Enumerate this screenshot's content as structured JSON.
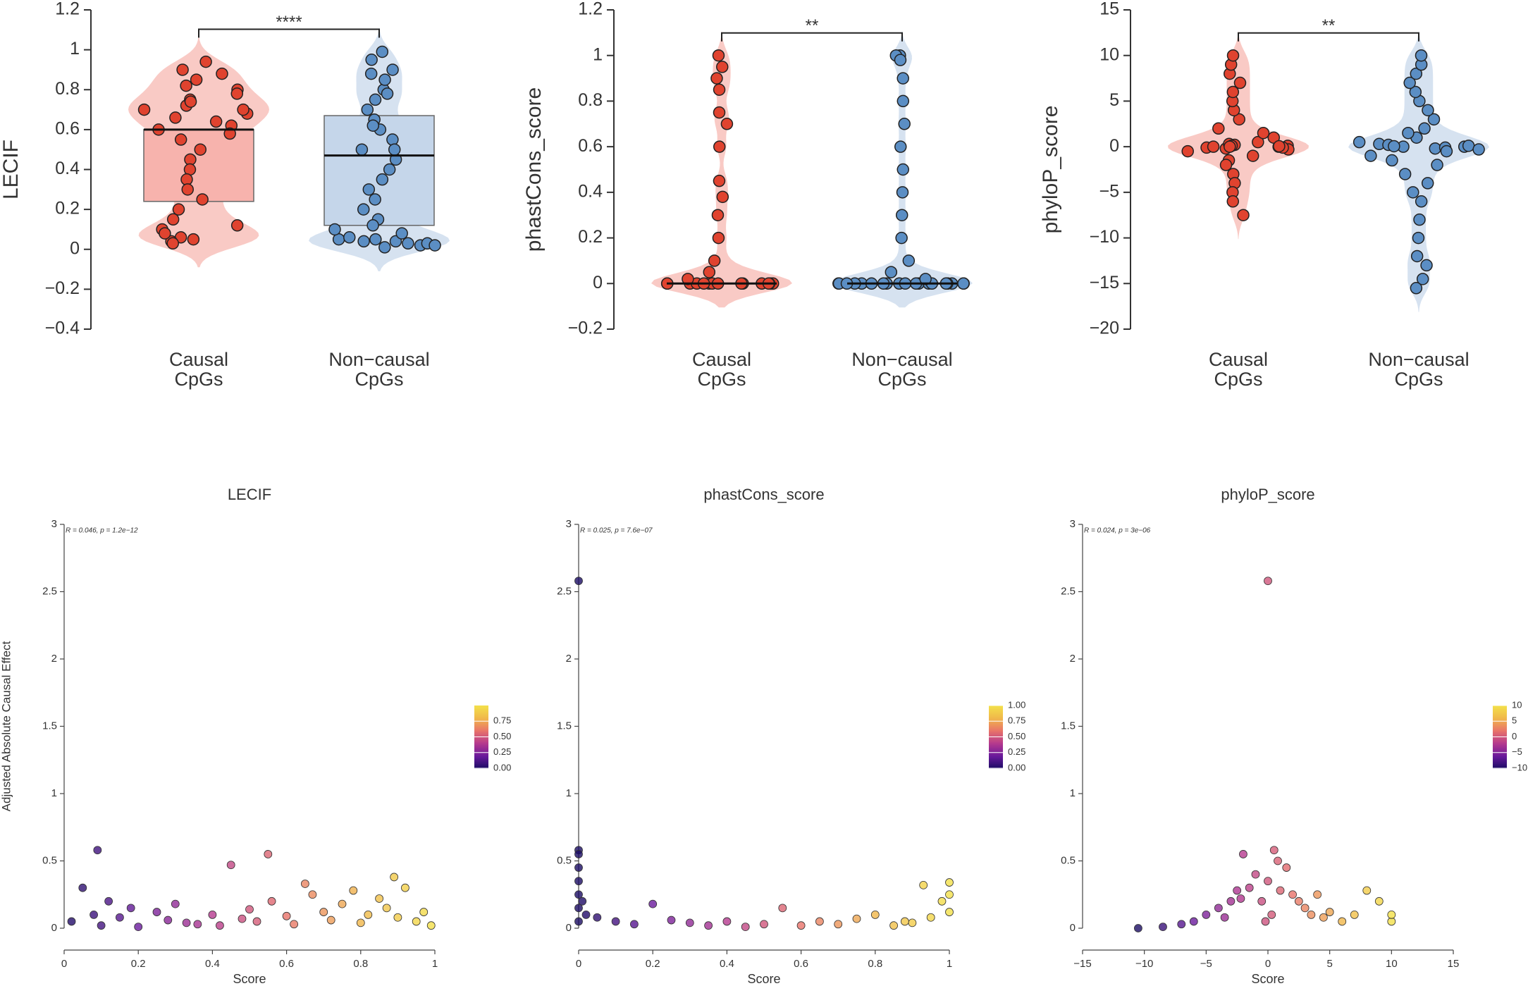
{
  "chart_data": [
    {
      "type": "violin",
      "ylabel": "LECIF",
      "categories": [
        "Causal CpGs",
        "Non−causal CpGs"
      ],
      "ylim": [
        -0.4,
        1.2
      ],
      "yticks": [
        {
          "value": -0.4,
          "label": "−0.4"
        },
        {
          "value": -0.2,
          "label": "−0.2"
        },
        0,
        0.2,
        0.4,
        0.6,
        0.8,
        1,
        1.2
      ],
      "significance": {
        "label": "****"
      },
      "series": [
        {
          "name": "Causal CpGs",
          "color": "#e0432f",
          "box_color": "#f7b3ad",
          "box": {
            "q1": 0.24,
            "median": 0.6,
            "q3": 0.6
          },
          "values": [
            0.62,
            0.68,
            0.72,
            0.75,
            0.8,
            0.85,
            0.9,
            0.94,
            0.7,
            0.66,
            0.58,
            0.64,
            0.78,
            0.82,
            0.6,
            0.55,
            0.5,
            0.45,
            0.4,
            0.35,
            0.3,
            0.25,
            0.2,
            0.15,
            0.1,
            0.06,
            0.04,
            0.08,
            0.12,
            0.05,
            0.7,
            0.74,
            0.88,
            0.03
          ]
        },
        {
          "name": "Non−causal CpGs",
          "color": "#5b8ec4",
          "box_color": "#c5d6ea",
          "box": {
            "q1": 0.12,
            "median": 0.47,
            "q3": 0.67
          },
          "values": [
            0.02,
            0.03,
            0.04,
            0.05,
            0.02,
            0.06,
            0.08,
            0.1,
            0.03,
            0.04,
            0.15,
            0.2,
            0.25,
            0.3,
            0.35,
            0.4,
            0.45,
            0.5,
            0.55,
            0.6,
            0.65,
            0.7,
            0.75,
            0.8,
            0.85,
            0.9,
            0.95,
            0.99,
            0.01,
            0.05,
            0.12,
            0.5,
            0.62,
            0.78,
            0.88
          ]
        }
      ]
    },
    {
      "type": "violin",
      "ylabel": "phastCons_score",
      "categories": [
        "Causal CpGs",
        "Non−causal CpGs"
      ],
      "ylim": [
        -0.2,
        1.2
      ],
      "yticks": [
        {
          "value": -0.2,
          "label": "−0.2"
        },
        0,
        0.2,
        0.4,
        0.6,
        0.8,
        1,
        1.2
      ],
      "significance": {
        "label": "**"
      },
      "series": [
        {
          "name": "Causal CpGs",
          "color": "#e0432f",
          "box_color": "#f7b3ad",
          "box": {
            "q1": 0,
            "median": 0,
            "q3": 0
          },
          "values": [
            0,
            0,
            0,
            0,
            0,
            0,
            0,
            0,
            0,
            0,
            0,
            0,
            0,
            0,
            0,
            1,
            0.95,
            0.85,
            0.75,
            0.6,
            0.45,
            0.38,
            0.3,
            0.2,
            0.1,
            0.05,
            0.02,
            0.9,
            0.7
          ]
        },
        {
          "name": "Non−causal CpGs",
          "color": "#5b8ec4",
          "box_color": "#c5d6ea",
          "box": {
            "q1": 0,
            "median": 0,
            "q3": 0
          },
          "values": [
            0,
            0,
            0,
            0,
            0,
            0,
            0,
            0,
            0,
            0,
            0,
            0,
            0,
            0,
            0,
            0,
            0,
            0,
            0,
            0,
            1,
            1,
            0.98,
            0.9,
            0.8,
            0.7,
            0.6,
            0.5,
            0.4,
            0.3,
            0.2,
            0.1,
            0.05,
            0.02
          ]
        }
      ]
    },
    {
      "type": "violin",
      "ylabel": "phyloP_score",
      "categories": [
        "Causal CpGs",
        "Non−causal CpGs"
      ],
      "ylim": [
        -20,
        15
      ],
      "yticks": [
        {
          "value": -20,
          "label": "−20"
        },
        {
          "value": -15,
          "label": "−15"
        },
        {
          "value": -10,
          "label": "−10"
        },
        {
          "value": -5,
          "label": "−5"
        },
        0,
        5,
        10,
        15
      ],
      "significance": {
        "label": "**"
      },
      "series": [
        {
          "name": "Causal CpGs",
          "color": "#e0432f",
          "box_color": "#f7b3ad",
          "values": [
            0,
            0.1,
            -0.2,
            0.3,
            -0.3,
            0.2,
            -0.1,
            0.5,
            -0.5,
            0,
            1,
            -1,
            1.5,
            -1.5,
            2,
            -2,
            3,
            -3,
            4,
            5,
            6,
            7,
            8,
            9,
            10,
            -4,
            -5,
            -6,
            -7.5,
            0.1,
            -0.1,
            0,
            0.05
          ]
        },
        {
          "name": "Non−causal CpGs",
          "color": "#5b8ec4",
          "box_color": "#c5d6ea",
          "values": [
            0,
            0.1,
            -0.2,
            0.3,
            -0.3,
            0.2,
            -0.1,
            0.5,
            -0.5,
            0,
            1,
            -1,
            1.5,
            -1.5,
            2,
            -2,
            3,
            -3,
            4,
            5,
            6,
            7,
            8,
            9,
            10,
            -4,
            -5,
            -6,
            -8,
            -10,
            -12,
            -13,
            -15.5,
            -14.5,
            0.05
          ]
        }
      ]
    },
    {
      "type": "scatter",
      "title": "LECIF",
      "xlabel": "Score",
      "ylabel": "Adjusted Absolute Causal Effect",
      "annotation": "R = 0.046, p = 1.2e−12",
      "xlim": [
        0,
        1
      ],
      "xticks": [
        0,
        0.2,
        0.4,
        0.6,
        0.8,
        1
      ],
      "ylim": [
        0,
        3
      ],
      "yticks": [
        0,
        0.5,
        1,
        1.5,
        2,
        2.5,
        3
      ],
      "colormap": [
        "#1b0c64",
        "#6a1a9c",
        "#b5398e",
        "#e8736a",
        "#f0b74a",
        "#f3e04a"
      ],
      "colorbar": {
        "lim": [
          0,
          1
        ],
        "ticks": [
          {
            "value": 0,
            "label": "0.00"
          },
          0.25,
          {
            "value": 0.5,
            "label": "0.50"
          },
          0.75
        ]
      },
      "x": [
        0.02,
        0.05,
        0.08,
        0.1,
        0.12,
        0.15,
        0.18,
        0.2,
        0.25,
        0.28,
        0.3,
        0.33,
        0.36,
        0.4,
        0.42,
        0.45,
        0.48,
        0.5,
        0.52,
        0.55,
        0.56,
        0.6,
        0.62,
        0.65,
        0.67,
        0.7,
        0.72,
        0.75,
        0.78,
        0.8,
        0.82,
        0.85,
        0.87,
        0.89,
        0.9,
        0.92,
        0.95,
        0.97,
        0.99,
        0.09
      ],
      "y": [
        0.05,
        0.3,
        0.1,
        0.02,
        0.2,
        0.08,
        0.15,
        0.01,
        0.12,
        0.06,
        0.18,
        0.04,
        0.03,
        0.1,
        0.02,
        0.47,
        0.07,
        0.14,
        0.05,
        0.55,
        0.2,
        0.09,
        0.03,
        0.33,
        0.25,
        0.12,
        0.06,
        0.18,
        0.28,
        0.04,
        0.1,
        0.22,
        0.15,
        0.38,
        0.08,
        0.3,
        0.05,
        0.12,
        0.02,
        0.58
      ]
    },
    {
      "type": "scatter",
      "title": "phastCons_score",
      "xlabel": "Score",
      "annotation": "R = 0.025, p = 7.6e−07",
      "xlim": [
        0,
        1
      ],
      "xticks": [
        0,
        0.2,
        0.4,
        0.6,
        0.8,
        1
      ],
      "ylim": [
        0,
        3
      ],
      "yticks": [
        0,
        0.5,
        1,
        1.5,
        2,
        2.5,
        3
      ],
      "colormap": [
        "#1b0c64",
        "#6a1a9c",
        "#b5398e",
        "#e8736a",
        "#f0b74a",
        "#f3e04a"
      ],
      "colorbar": {
        "lim": [
          0,
          1
        ],
        "ticks": [
          {
            "value": 0,
            "label": "0.00"
          },
          0.25,
          {
            "value": 0.5,
            "label": "0.50"
          },
          0.75,
          {
            "value": 1,
            "label": "1.00"
          }
        ]
      },
      "x": [
        0,
        0,
        0,
        0,
        0,
        0,
        0,
        0,
        0.01,
        0.02,
        0.05,
        0.1,
        0.15,
        0.2,
        0.25,
        0.3,
        0.35,
        0.4,
        0.45,
        0.5,
        0.55,
        0.6,
        0.65,
        0.7,
        0.75,
        0.8,
        0.85,
        0.9,
        0.95,
        1,
        1,
        1,
        0.98,
        0.93,
        0.88
      ],
      "y": [
        2.58,
        0.58,
        0.55,
        0.45,
        0.35,
        0.25,
        0.15,
        0.05,
        0.2,
        0.1,
        0.08,
        0.05,
        0.03,
        0.18,
        0.06,
        0.04,
        0.02,
        0.05,
        0.01,
        0.03,
        0.15,
        0.02,
        0.05,
        0.03,
        0.07,
        0.1,
        0.02,
        0.04,
        0.08,
        0.34,
        0.25,
        0.12,
        0.2,
        0.32,
        0.05
      ]
    },
    {
      "type": "scatter",
      "title": "phyloP_score",
      "xlabel": "Score",
      "annotation": "R = 0.024, p = 3e−06",
      "xlim": [
        -15,
        15
      ],
      "xticks": [
        {
          "value": -15,
          "label": "−15"
        },
        {
          "value": -10,
          "label": "−10"
        },
        {
          "value": -5,
          "label": "−5"
        },
        0,
        5,
        10,
        15
      ],
      "ylim": [
        0,
        3
      ],
      "yticks": [
        0,
        0.5,
        1,
        1.5,
        2,
        2.5,
        3
      ],
      "colormap": [
        "#1b0c64",
        "#6a1a9c",
        "#b5398e",
        "#e8736a",
        "#f0b74a",
        "#f3e04a"
      ],
      "colorbar": {
        "lim": [
          -10,
          10
        ],
        "ticks": [
          {
            "value": -10,
            "label": "−10"
          },
          {
            "value": -5,
            "label": "−5"
          },
          0,
          5,
          10
        ]
      },
      "x": [
        -10.5,
        -8.5,
        -7,
        -6,
        -5,
        -4,
        -3.5,
        -3,
        -2.5,
        -2,
        -1.5,
        -1,
        -0.5,
        0,
        0,
        0.3,
        0.5,
        1,
        1.5,
        2,
        2.5,
        3,
        3.5,
        4,
        4.5,
        5,
        6,
        7,
        8,
        9,
        10,
        10,
        -2.2,
        0.8,
        -0.2
      ],
      "y": [
        0,
        0.01,
        0.03,
        0.05,
        0.1,
        0.15,
        0.08,
        0.2,
        0.28,
        0.55,
        0.3,
        0.4,
        0.2,
        2.58,
        0.35,
        0.1,
        0.58,
        0.28,
        0.45,
        0.25,
        0.2,
        0.15,
        0.1,
        0.25,
        0.08,
        0.12,
        0.05,
        0.1,
        0.28,
        0.2,
        0.05,
        0.1,
        0.22,
        0.5,
        0.05
      ]
    }
  ]
}
